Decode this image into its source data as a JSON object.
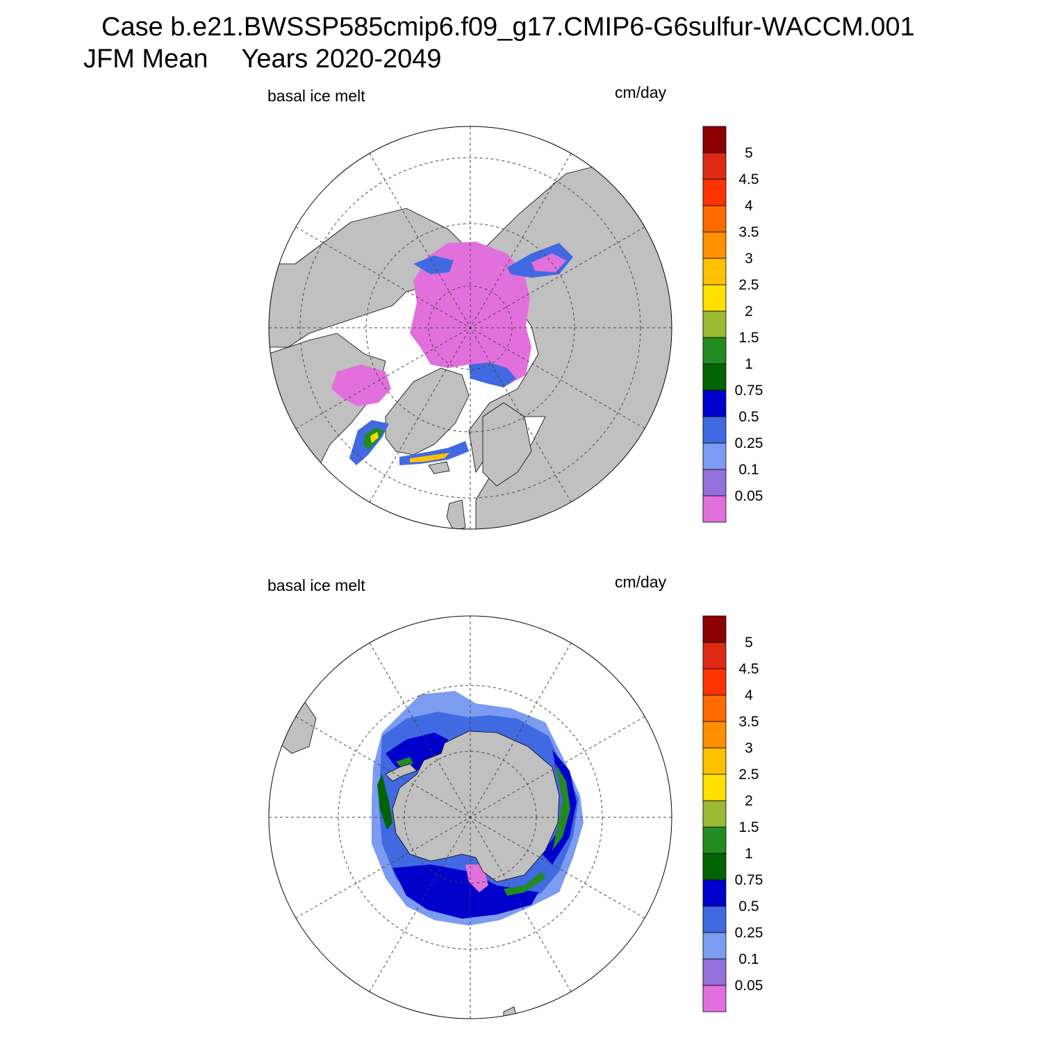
{
  "title": {
    "line1": "Case b.e21.BWSSP585cmip6.f09_g17.CMIP6-G6sulfur-WACCM.001",
    "season": "JFM Mean",
    "years": "Years 2020-2049"
  },
  "panels": [
    {
      "id": "north",
      "hemisphere": "Arctic",
      "variable_label": "basal ice melt",
      "units_label": "cm/day"
    },
    {
      "id": "south",
      "hemisphere": "Antarctic",
      "variable_label": "basal ice melt",
      "units_label": "cm/day"
    }
  ],
  "colorbar": {
    "boundaries": [
      "0.05",
      "0.1",
      "0.25",
      "0.5",
      "0.75",
      "1",
      "1.5",
      "2",
      "2.5",
      "3",
      "3.5",
      "4",
      "4.5",
      "5"
    ],
    "colors_bottom_to_top": [
      "#e270dc",
      "#9370db",
      "#7b9cf0",
      "#4169e1",
      "#0000cd",
      "#006400",
      "#228b22",
      "#9aba33",
      "#ffe000",
      "#ffc000",
      "#ff9000",
      "#ff6a00",
      "#ff3300",
      "#dd2a15",
      "#8b0000"
    ]
  },
  "colors": {
    "land": "#c0c0c0",
    "ocean": "#ffffff",
    "grid": "#444444"
  }
}
